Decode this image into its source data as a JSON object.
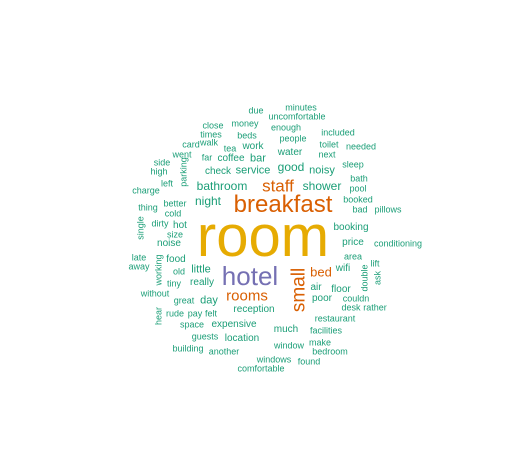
{
  "palette": {
    "gold": "#e6ab02",
    "orange": "#d95f02",
    "purple": "#7570b3",
    "teal": "#1b9e77"
  },
  "words": [
    {
      "text": "room",
      "color": "gold"
    },
    {
      "text": "breakfast",
      "color": "orange"
    },
    {
      "text": "hotel",
      "color": "purple"
    },
    {
      "text": "small",
      "color": "orange"
    },
    {
      "text": "staff",
      "color": "orange"
    },
    {
      "text": "rooms",
      "color": "orange"
    },
    {
      "text": "bed",
      "color": "orange"
    },
    {
      "text": "bathroom",
      "color": "teal"
    },
    {
      "text": "night",
      "color": "teal"
    },
    {
      "text": "shower",
      "color": "teal"
    },
    {
      "text": "good",
      "color": "teal"
    },
    {
      "text": "noisy",
      "color": "teal"
    },
    {
      "text": "service",
      "color": "teal"
    },
    {
      "text": "check",
      "color": "teal"
    },
    {
      "text": "bar",
      "color": "teal"
    },
    {
      "text": "water",
      "color": "teal"
    },
    {
      "text": "work",
      "color": "teal"
    },
    {
      "text": "coffee",
      "color": "teal"
    },
    {
      "text": "far",
      "color": "teal"
    },
    {
      "text": "little",
      "color": "teal"
    },
    {
      "text": "really",
      "color": "teal"
    },
    {
      "text": "day",
      "color": "teal"
    },
    {
      "text": "reception",
      "color": "teal"
    },
    {
      "text": "expensive",
      "color": "teal"
    },
    {
      "text": "location",
      "color": "teal"
    },
    {
      "text": "much",
      "color": "teal"
    },
    {
      "text": "floor",
      "color": "teal"
    },
    {
      "text": "air",
      "color": "teal"
    },
    {
      "text": "poor",
      "color": "teal"
    },
    {
      "text": "price",
      "color": "teal"
    },
    {
      "text": "booking",
      "color": "teal"
    },
    {
      "text": "wifi",
      "color": "teal"
    },
    {
      "text": "area",
      "color": "teal"
    },
    {
      "text": "food",
      "color": "teal"
    },
    {
      "text": "noise",
      "color": "teal"
    },
    {
      "text": "hot",
      "color": "teal"
    },
    {
      "text": "better",
      "color": "teal"
    },
    {
      "text": "cold",
      "color": "teal"
    },
    {
      "text": "dirty",
      "color": "teal"
    },
    {
      "text": "size",
      "color": "teal"
    },
    {
      "text": "old",
      "color": "teal"
    },
    {
      "text": "tiny",
      "color": "teal"
    },
    {
      "text": "great",
      "color": "teal"
    },
    {
      "text": "rude",
      "color": "teal"
    },
    {
      "text": "pay",
      "color": "teal"
    },
    {
      "text": "felt",
      "color": "teal"
    },
    {
      "text": "space",
      "color": "teal"
    },
    {
      "text": "guests",
      "color": "teal"
    },
    {
      "text": "building",
      "color": "teal"
    },
    {
      "text": "another",
      "color": "teal"
    },
    {
      "text": "window",
      "color": "teal"
    },
    {
      "text": "windows",
      "color": "teal"
    },
    {
      "text": "comfortable",
      "color": "teal"
    },
    {
      "text": "found",
      "color": "teal"
    },
    {
      "text": "make",
      "color": "teal"
    },
    {
      "text": "bedroom",
      "color": "teal"
    },
    {
      "text": "facilities",
      "color": "teal"
    },
    {
      "text": "restaurant",
      "color": "teal"
    },
    {
      "text": "couldn",
      "color": "teal"
    },
    {
      "text": "desk",
      "color": "teal"
    },
    {
      "text": "rather",
      "color": "teal"
    },
    {
      "text": "lift",
      "color": "teal"
    },
    {
      "text": "conditioning",
      "color": "teal"
    },
    {
      "text": "ask",
      "color": "teal"
    },
    {
      "text": "double",
      "color": "teal"
    },
    {
      "text": "bad",
      "color": "teal"
    },
    {
      "text": "pillows",
      "color": "teal"
    },
    {
      "text": "booked",
      "color": "teal"
    },
    {
      "text": "pool",
      "color": "teal"
    },
    {
      "text": "bath",
      "color": "teal"
    },
    {
      "text": "sleep",
      "color": "teal"
    },
    {
      "text": "next",
      "color": "teal"
    },
    {
      "text": "needed",
      "color": "teal"
    },
    {
      "text": "toilet",
      "color": "teal"
    },
    {
      "text": "included",
      "color": "teal"
    },
    {
      "text": "people",
      "color": "teal"
    },
    {
      "text": "enough",
      "color": "teal"
    },
    {
      "text": "uncomfortable",
      "color": "teal"
    },
    {
      "text": "minutes",
      "color": "teal"
    },
    {
      "text": "due",
      "color": "teal"
    },
    {
      "text": "money",
      "color": "teal"
    },
    {
      "text": "beds",
      "color": "teal"
    },
    {
      "text": "close",
      "color": "teal"
    },
    {
      "text": "times",
      "color": "teal"
    },
    {
      "text": "tea",
      "color": "teal"
    },
    {
      "text": "card",
      "color": "teal"
    },
    {
      "text": "walk",
      "color": "teal"
    },
    {
      "text": "went",
      "color": "teal"
    },
    {
      "text": "parking",
      "color": "teal"
    },
    {
      "text": "side",
      "color": "teal"
    },
    {
      "text": "high",
      "color": "teal"
    },
    {
      "text": "charge",
      "color": "teal"
    },
    {
      "text": "left",
      "color": "teal"
    },
    {
      "text": "thing",
      "color": "teal"
    },
    {
      "text": "single",
      "color": "teal"
    },
    {
      "text": "late",
      "color": "teal"
    },
    {
      "text": "away",
      "color": "teal"
    },
    {
      "text": "working",
      "color": "teal"
    },
    {
      "text": "without",
      "color": "teal"
    },
    {
      "text": "hear",
      "color": "teal"
    }
  ]
}
